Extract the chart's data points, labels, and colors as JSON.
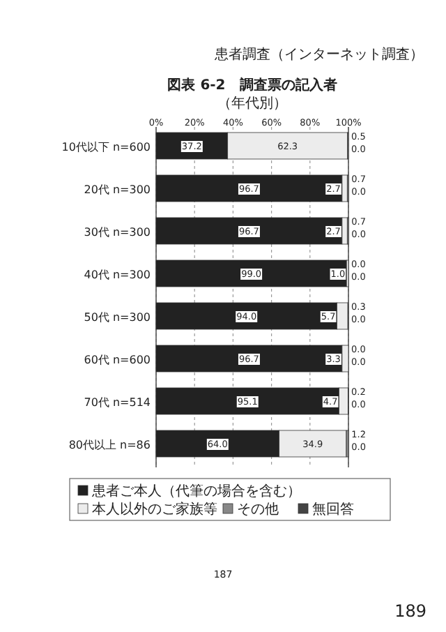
{
  "chart_data": {
    "type": "bar",
    "orientation": "horizontal",
    "stacked": true,
    "title": "図表 6-2　調査票の記入者",
    "subtitle": "（年代別）",
    "categories": [
      "10代以下 n=600",
      "20代 n=300",
      "30代 n=300",
      "40代 n=300",
      "50代 n=300",
      "60代 n=600",
      "70代 n=514",
      "80代以上 n=86"
    ],
    "series": [
      {
        "name": "患者ご本人（代筆の場合を含む）",
        "color": "#222222",
        "values": [
          37.2,
          96.7,
          96.7,
          99.0,
          94.0,
          96.7,
          95.1,
          64.0
        ],
        "value_labels": [
          "37.2",
          "96.7",
          "96.7",
          "99.0",
          "94.0",
          "96.7",
          "95.1",
          "64.0"
        ]
      },
      {
        "name": "本人以外のご家族等",
        "color": "#ececec",
        "values": [
          62.3,
          2.7,
          2.7,
          1.0,
          5.7,
          3.3,
          4.7,
          34.9
        ],
        "value_labels": [
          "62.3",
          "2.7",
          "2.7",
          "1.0",
          "5.7",
          "3.3",
          "4.7",
          "34.9"
        ]
      },
      {
        "name": "その他",
        "color": "#888888",
        "values": [
          0.5,
          0.7,
          0.7,
          0.0,
          0.3,
          0.0,
          0.2,
          1.2
        ],
        "value_labels": [
          "0.5",
          "0.7",
          "0.7",
          "0.0",
          "0.3",
          "0.0",
          "0.2",
          "1.2"
        ]
      },
      {
        "name": "無回答",
        "color": "#444444",
        "values": [
          0.0,
          0.0,
          0.0,
          0.0,
          0.0,
          0.0,
          0.0,
          0.0
        ],
        "value_labels": [
          "0.0",
          "0.0",
          "0.0",
          "0.0",
          "0.0",
          "0.0",
          "0.0",
          "0.0"
        ]
      }
    ],
    "xlim": [
      0,
      100
    ],
    "xticks": [
      {
        "value": 0,
        "label": "0%"
      },
      {
        "value": 20,
        "label": "20%"
      },
      {
        "value": 40,
        "label": "40%"
      },
      {
        "value": 60,
        "label": "60%"
      },
      {
        "value": 80,
        "label": "80%"
      },
      {
        "value": 100,
        "label": "100%"
      }
    ],
    "grid": "x",
    "legend": "bottom",
    "annotations": [
      "患者調査（インターネット調査）",
      "187",
      "189"
    ]
  }
}
